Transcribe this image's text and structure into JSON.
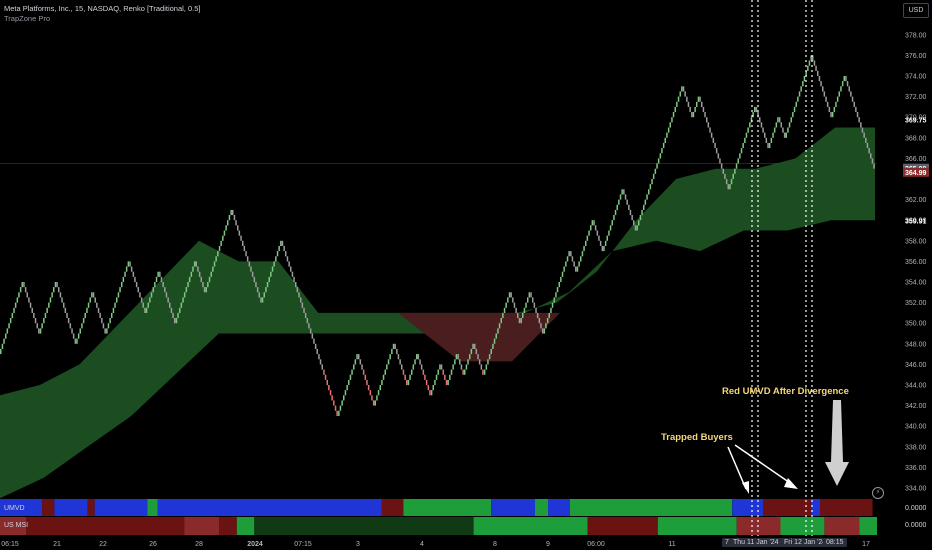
{
  "header": {
    "title": "Meta Platforms, Inc., 15, NASDAQ, Renko [Traditional, 0.5]",
    "indicator": "TrapZone Pro"
  },
  "currency_button": "USD",
  "indicators": [
    {
      "label": "UMVD",
      "value": "0.0000"
    },
    {
      "label": "US MSI",
      "value": "0.0000"
    }
  ],
  "time_bubbles": [
    "Thu 11 Jan '24",
    "Fri 12 Jan '24",
    "08:15"
  ],
  "time_bubble_prefix": "7",
  "annotations": [
    {
      "text": "Trapped Buyers"
    },
    {
      "text": "Red UMVD After Divergence"
    }
  ],
  "colors": {
    "bull_brick": "#81c784",
    "bear_brick_grey": "#9e9e9e",
    "bear_brick_red": "#e57373",
    "zone_green": "#1b4d20",
    "zone_red": "#4a1e1e",
    "strip_blue": "#1f35d6",
    "strip_green": "#1e9e3a",
    "strip_darkred": "#6b1212",
    "annotation_text": "#f5d67a",
    "dotted_line": "#ffffff"
  },
  "chart_data": {
    "type": "renko",
    "symbol": "META",
    "exchange": "NASDAQ",
    "interval": "15",
    "brick_size": 0.5,
    "ylim": [
      332,
      378
    ],
    "y_ticks": [
      "334.00",
      "336.00",
      "338.00",
      "340.00",
      "342.00",
      "344.00",
      "346.00",
      "348.00",
      "350.00",
      "352.00",
      "354.00",
      "356.00",
      "358.00",
      "360.00",
      "362.00",
      "366.00",
      "368.00",
      "370.00",
      "372.00",
      "374.00",
      "376.00",
      "378.00"
    ],
    "price_labels": [
      {
        "text": "369.75",
        "value": 369.75,
        "style": "plain"
      },
      {
        "text": "365.00",
        "value": 365.0,
        "style": "current"
      },
      {
        "text": "364.99",
        "value": 364.99,
        "style": "red"
      },
      {
        "text": "359.91",
        "value": 359.91,
        "style": "plain"
      }
    ],
    "last_price": 365.0,
    "x_ticks": [
      "06:15",
      "21",
      "22",
      "26",
      "28",
      "2024",
      "07:15",
      "3",
      "4",
      "8",
      "9",
      "06:00",
      "11",
      "17"
    ],
    "price_path": [
      347,
      354,
      349,
      354,
      348,
      353,
      349,
      356,
      351,
      355,
      350,
      356,
      353,
      361,
      355,
      352,
      358,
      348,
      341,
      347,
      342,
      348,
      344,
      347,
      343,
      346,
      344,
      347,
      345,
      348,
      345,
      353,
      350,
      353,
      349,
      357,
      355,
      360,
      357,
      363,
      359,
      367,
      373,
      370,
      372,
      368,
      363,
      371,
      367,
      370,
      368,
      372,
      376,
      374,
      370,
      374,
      365
    ],
    "zone_upper": [
      343,
      344,
      346,
      350,
      354,
      358,
      356,
      356,
      351,
      351,
      351,
      351,
      351,
      351,
      352,
      355,
      360,
      364,
      365,
      365,
      366,
      369,
      369
    ],
    "zone_lower": [
      333,
      335,
      338,
      341,
      345,
      349,
      349,
      349,
      349,
      349,
      349,
      349,
      351,
      353,
      357,
      358,
      357,
      359,
      359,
      360,
      360
    ],
    "red_zone": {
      "upper": 351,
      "lower": 346
    },
    "umvd_segments": [
      "blue",
      "darkred",
      "blue",
      "darkred",
      "blue",
      "green",
      "blue",
      "darkred",
      "green",
      "blue",
      "green",
      "blue",
      "green",
      "blue",
      "darkred",
      "blue",
      "darkred"
    ],
    "msi_segments": [
      "red",
      "darkred",
      "red",
      "darkred",
      "green",
      "darkgreen",
      "green",
      "darkred",
      "green",
      "red",
      "green",
      "red",
      "green"
    ]
  }
}
